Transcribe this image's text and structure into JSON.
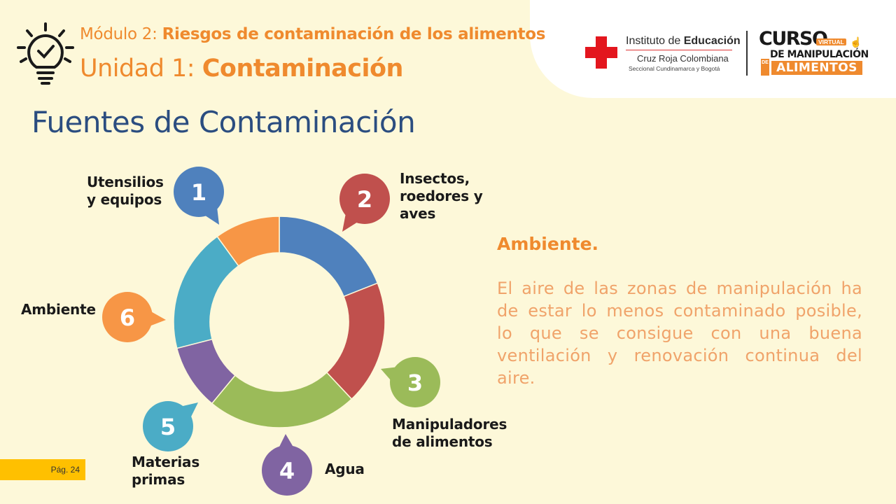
{
  "header": {
    "module_label": "Módulo 2:",
    "module_name": "Riesgos de contaminación de los alimentos",
    "unit_label": "Unidad 1:",
    "unit_name": "Contaminación",
    "icon": "lightbulb-check-icon"
  },
  "logos": {
    "institute_line1_a": "Instituto de ",
    "institute_line1_b": "Educación",
    "institute_line2": "Cruz Roja Colombiana",
    "institute_line3": "Seccional Cundinamarca y Bogotá",
    "curso": "CURSO",
    "virtual": "VIRTUAL",
    "de_manipulacion": "DE MANIPULACIÓN",
    "de_vertical": "DE",
    "alimentos": "ALIMENTOS",
    "cross_color": "#e3161e"
  },
  "title": "Fuentes de Contaminación",
  "sources": [
    {
      "number": "1",
      "line1": "Utensilios",
      "line2": "y equipos",
      "line3": "",
      "color": "#4f81bd",
      "fraction": 0.19
    },
    {
      "number": "2",
      "line1": "Insectos,",
      "line2": "roedores y",
      "line3": "aves",
      "color": "#c0504d",
      "fraction": 0.19
    },
    {
      "number": "3",
      "line1": "Manipuladores",
      "line2": "de alimentos",
      "line3": "",
      "color": "#9bbb59",
      "fraction": 0.23
    },
    {
      "number": "4",
      "line1": "Agua",
      "line2": "",
      "line3": "",
      "color": "#8064a2",
      "fraction": 0.1
    },
    {
      "number": "5",
      "line1": "Materias",
      "line2": "primas",
      "line3": "",
      "color": "#4bacc6",
      "fraction": 0.19
    },
    {
      "number": "6",
      "line1": "Ambiente",
      "line2": "",
      "line3": "",
      "color": "#f79646",
      "fraction": 0.1
    }
  ],
  "detail": {
    "heading": "Ambiente.",
    "text": "El aire de las zonas de manipulación ha de estar lo menos contaminado posible, lo que se consigue con una buena ventilación y renovación continua del aire."
  },
  "page": "Pág. 24"
}
